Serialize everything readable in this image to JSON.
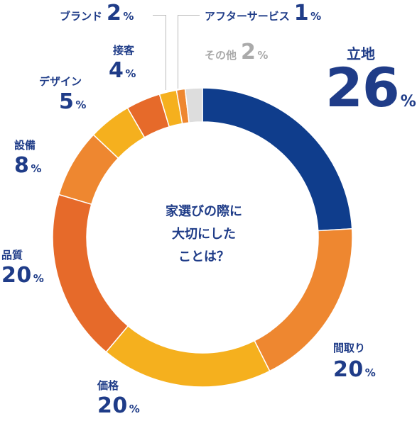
{
  "chart_data": {
    "type": "donut",
    "center_text": [
      "家選びの際に",
      "大切にした",
      "ことは？"
    ],
    "unit": "%",
    "slices": [
      {
        "name": "立地",
        "value": 26,
        "color": "#0f3d8c"
      },
      {
        "name": "間取り",
        "value": 20,
        "color": "#ee8730"
      },
      {
        "name": "価格",
        "value": 20,
        "color": "#f5b01e"
      },
      {
        "name": "品質",
        "value": 20,
        "color": "#e66a2a"
      },
      {
        "name": "設備",
        "value": 8,
        "color": "#ee8730"
      },
      {
        "name": "デザイン",
        "value": 5,
        "color": "#f5b01e"
      },
      {
        "name": "接客",
        "value": 4,
        "color": "#e66a2a"
      },
      {
        "name": "ブランド",
        "value": 2,
        "color": "#f5b01e"
      },
      {
        "name": "アフターサービス",
        "value": 1,
        "color": "#ee8730"
      },
      {
        "name": "その他",
        "value": 2,
        "color": "#dddddd"
      }
    ]
  }
}
